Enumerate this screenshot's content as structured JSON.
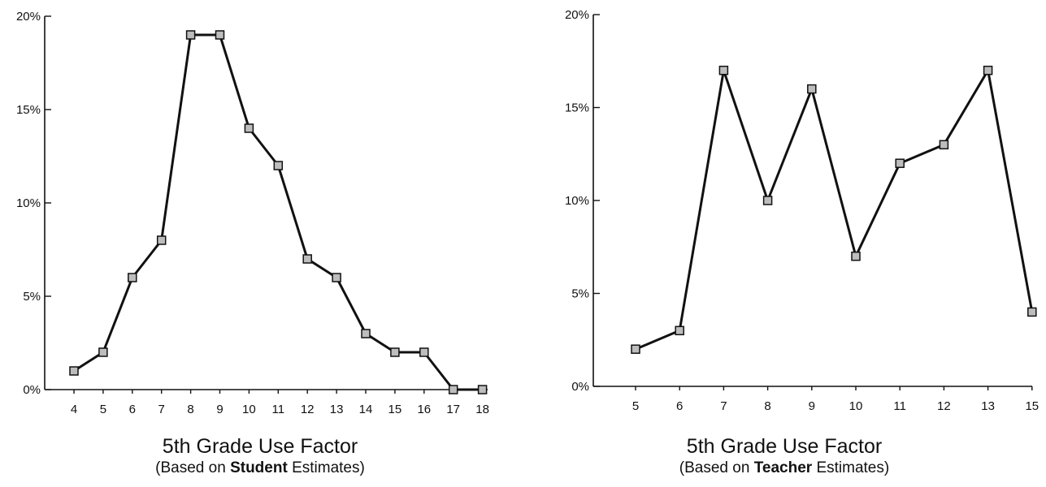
{
  "chart_data": [
    {
      "type": "line",
      "title": "5th Grade Use Factor",
      "subtitle_prefix": "(Based on ",
      "subtitle_bold": "Student",
      "subtitle_suffix": " Estimates)",
      "x": [
        4,
        5,
        6,
        7,
        8,
        9,
        10,
        11,
        12,
        13,
        14,
        15,
        16,
        17,
        18
      ],
      "x_tick_labels": [
        "4",
        "5",
        "6",
        "7",
        "8",
        "9",
        "10",
        "11",
        "12",
        "13",
        "14",
        "15",
        "16",
        "17",
        "18"
      ],
      "values": [
        1,
        2,
        6,
        8,
        19,
        19,
        14,
        12,
        7,
        6,
        3,
        2,
        2,
        0,
        0
      ],
      "ylim": [
        0,
        20
      ],
      "y_ticks": [
        0,
        5,
        10,
        15,
        20
      ],
      "y_tick_labels": [
        "0%",
        "5%",
        "10%",
        "15%",
        "20%"
      ],
      "grid": false,
      "line_color": "#111111",
      "marker_fill": "#bdbdbd"
    },
    {
      "type": "line",
      "title": "5th Grade Use Factor",
      "subtitle_prefix": "(Based on ",
      "subtitle_bold": "Teacher",
      "subtitle_suffix": " Estimates)",
      "x": [
        5,
        6,
        7,
        8,
        9,
        10,
        11,
        12,
        13,
        15
      ],
      "x_tick_labels": [
        "5",
        "6",
        "7",
        "8",
        "9",
        "10",
        "11",
        "12",
        "13",
        "15"
      ],
      "values": [
        2,
        3,
        17,
        10,
        16,
        7,
        12,
        13,
        17,
        4
      ],
      "ylim": [
        0,
        20
      ],
      "y_ticks": [
        0,
        5,
        10,
        15,
        20
      ],
      "y_tick_labels": [
        "0%",
        "5%",
        "10%",
        "15%",
        "20%"
      ],
      "grid": false,
      "line_color": "#111111",
      "marker_fill": "#bdbdbd"
    }
  ]
}
